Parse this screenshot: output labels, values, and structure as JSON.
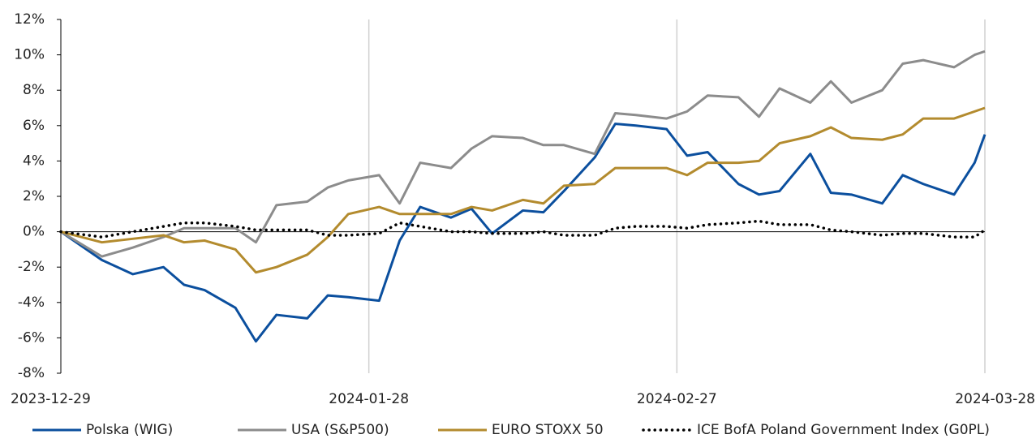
{
  "chart_data": {
    "type": "line",
    "x": [
      "2023-12-29",
      "2024-01-02",
      "2024-01-05",
      "2024-01-08",
      "2024-01-10",
      "2024-01-12",
      "2024-01-15",
      "2024-01-17",
      "2024-01-19",
      "2024-01-22",
      "2024-01-24",
      "2024-01-26",
      "2024-01-29",
      "2024-01-31",
      "2024-02-02",
      "2024-02-05",
      "2024-02-07",
      "2024-02-09",
      "2024-02-12",
      "2024-02-14",
      "2024-02-16",
      "2024-02-19",
      "2024-02-21",
      "2024-02-23",
      "2024-02-26",
      "2024-02-28",
      "2024-03-01",
      "2024-03-04",
      "2024-03-06",
      "2024-03-08",
      "2024-03-11",
      "2024-03-13",
      "2024-03-15",
      "2024-03-18",
      "2024-03-20",
      "2024-03-22",
      "2024-03-25",
      "2024-03-27",
      "2024-03-28"
    ],
    "series": [
      {
        "name": "Polska (WIG)",
        "color": "#0b4f9e",
        "style": "solid",
        "values": [
          0,
          -1.6,
          -2.4,
          -2.0,
          -3.0,
          -3.3,
          -4.3,
          -6.2,
          -4.7,
          -4.9,
          -3.6,
          -3.7,
          -3.9,
          -0.5,
          1.4,
          0.8,
          1.3,
          -0.1,
          1.2,
          1.1,
          2.3,
          4.2,
          6.1,
          6.0,
          5.8,
          4.3,
          4.5,
          2.7,
          2.1,
          2.3,
          4.4,
          2.2,
          2.1,
          1.6,
          3.2,
          2.7,
          2.1,
          3.9,
          5.5
        ]
      },
      {
        "name": "USA (S&P500)",
        "color": "#8c8c8c",
        "style": "solid",
        "values": [
          0,
          -1.4,
          -0.9,
          -0.3,
          0.2,
          0.2,
          0.2,
          -0.6,
          1.5,
          1.7,
          2.5,
          2.9,
          3.2,
          1.6,
          3.9,
          3.6,
          4.7,
          5.4,
          5.3,
          4.9,
          4.9,
          4.4,
          6.7,
          6.6,
          6.4,
          6.8,
          7.7,
          7.6,
          6.5,
          8.1,
          7.3,
          8.5,
          7.3,
          8.0,
          9.5,
          9.7,
          9.3,
          10.0,
          10.2
        ]
      },
      {
        "name": "EURO STOXX 50",
        "color": "#b38b2e",
        "style": "solid",
        "values": [
          0,
          -0.6,
          -0.4,
          -0.2,
          -0.6,
          -0.5,
          -1.0,
          -2.3,
          -2.0,
          -1.3,
          -0.3,
          1.0,
          1.4,
          1.0,
          1.0,
          1.0,
          1.4,
          1.2,
          1.8,
          1.6,
          2.6,
          2.7,
          3.6,
          3.6,
          3.6,
          3.2,
          3.9,
          3.9,
          4.0,
          5.0,
          5.4,
          5.9,
          5.3,
          5.2,
          5.5,
          6.4,
          6.4,
          6.8,
          7.0
        ]
      },
      {
        "name": "ICE BofA Poland Government Index (G0PL)",
        "color": "#000000",
        "style": "dotted",
        "values": [
          0,
          -0.3,
          0,
          0.3,
          0.5,
          0.5,
          0.3,
          0.1,
          0.1,
          0.1,
          -0.2,
          -0.2,
          -0.1,
          0.5,
          0.3,
          0,
          0,
          -0.1,
          -0.1,
          0,
          -0.2,
          -0.2,
          0.2,
          0.3,
          0.3,
          0.2,
          0.4,
          0.5,
          0.6,
          0.4,
          0.4,
          0.1,
          0,
          -0.2,
          -0.1,
          -0.1,
          -0.3,
          -0.3,
          0.1
        ]
      }
    ],
    "xlim": [
      "2023-12-29",
      "2024-03-28"
    ],
    "xticks": [
      "2023-12-29",
      "2024-01-28",
      "2024-02-27",
      "2024-03-28"
    ],
    "ylim": [
      -8,
      12
    ],
    "yticks": [
      {
        "value": -8,
        "label": "-8%"
      },
      {
        "value": -6,
        "label": "-6%"
      },
      {
        "value": -4,
        "label": "-4%"
      },
      {
        "value": -2,
        "label": "-2%"
      },
      {
        "value": 0,
        "label": "0%"
      },
      {
        "value": 2,
        "label": "2%"
      },
      {
        "value": 4,
        "label": "4%"
      },
      {
        "value": 6,
        "label": "6%"
      },
      {
        "value": 8,
        "label": "8%"
      },
      {
        "value": 10,
        "label": "10%"
      },
      {
        "value": 12,
        "label": "12%"
      }
    ],
    "grid": "x"
  }
}
